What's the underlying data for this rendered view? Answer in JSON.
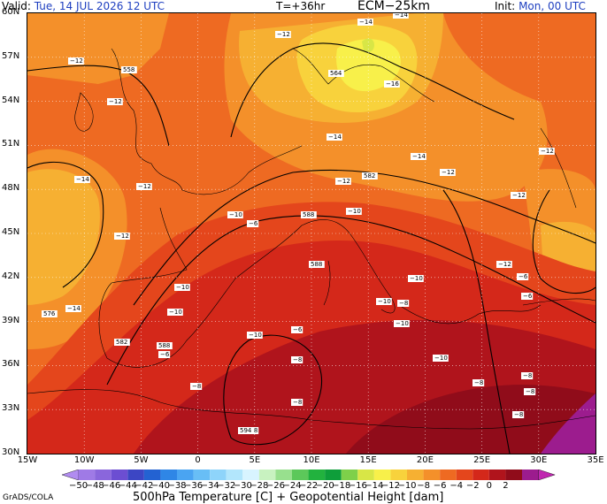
{
  "header": {
    "valid_prefix": "Valid:",
    "valid_value": "Tue, 14 JUL 2026   12 UTC",
    "forecast_step": "T=+36hr",
    "model": "ECM−25km",
    "init_prefix": "Init:",
    "init_value": "Mon, 00 UTC"
  },
  "axes": {
    "lat_labels": [
      "60N",
      "57N",
      "54N",
      "51N",
      "48N",
      "45N",
      "42N",
      "39N",
      "36N",
      "33N",
      "30N"
    ],
    "lon_labels": [
      "15W",
      "10W",
      "5W",
      "0",
      "5E",
      "10E",
      "15E",
      "20E",
      "25E",
      "30E",
      "35E"
    ]
  },
  "colorbar": {
    "labels": [
      "−50",
      "−48",
      "−46",
      "−44",
      "−42",
      "−40",
      "−38",
      "−36",
      "−34",
      "−32",
      "−30",
      "−28",
      "−26",
      "−24",
      "−22",
      "−20",
      "−18",
      "−16",
      "−14",
      "−12",
      "−10",
      "−8",
      "−6",
      "−4",
      "−2",
      "0",
      "2"
    ],
    "colors": [
      "#b18cf0",
      "#9f7ae6",
      "#8a66dc",
      "#6c4ed2",
      "#3c46c4",
      "#2362d2",
      "#2f86e6",
      "#4aa4f2",
      "#68bef6",
      "#8ed4fa",
      "#b2e6fc",
      "#d8f4ff",
      "#c8f2c0",
      "#98e08e",
      "#5cc85a",
      "#22b23e",
      "#0e9e3a",
      "#7ed04a",
      "#d8e646",
      "#f8f04a",
      "#f8d23c",
      "#f6b032",
      "#f4902a",
      "#ee6a22",
      "#e4461c",
      "#d4281a",
      "#b0141c",
      "#900c1a",
      "#9c1c8e",
      "#c028b0"
    ]
  },
  "footer": {
    "title": "500hPa Temperature [C] + Geopotential Height [dam]",
    "credit": "GrADS/COLA"
  },
  "map_labels": [
    {
      "text": "−14"
    },
    {
      "text": "−14"
    },
    {
      "text": "−12"
    },
    {
      "text": "−12"
    },
    {
      "text": "−12"
    },
    {
      "text": "558"
    },
    {
      "text": "564"
    },
    {
      "text": "−16"
    },
    {
      "text": "−12"
    },
    {
      "text": "−14"
    },
    {
      "text": "−14"
    },
    {
      "text": "−12"
    },
    {
      "text": "−14"
    },
    {
      "text": "−12"
    },
    {
      "text": "582"
    },
    {
      "text": "−12"
    },
    {
      "text": "−12"
    },
    {
      "text": "−10"
    },
    {
      "text": "−12"
    },
    {
      "text": "−10"
    },
    {
      "text": "588"
    },
    {
      "text": "−12"
    },
    {
      "text": "−10"
    },
    {
      "text": "−10"
    },
    {
      "text": "588"
    },
    {
      "text": "−10"
    },
    {
      "text": "576"
    },
    {
      "text": "−14"
    },
    {
      "text": "−10"
    },
    {
      "text": "−10"
    },
    {
      "text": "−10"
    },
    {
      "text": "582"
    },
    {
      "text": "−8"
    },
    {
      "text": "588"
    },
    {
      "text": "−10"
    },
    {
      "text": "−8"
    },
    {
      "text": "−8"
    },
    {
      "text": "−8"
    },
    {
      "text": "−8"
    },
    {
      "text": "−8"
    },
    {
      "text": "−8"
    },
    {
      "text": "−8"
    },
    {
      "text": "−8"
    },
    {
      "text": "−6"
    },
    {
      "text": "−6"
    },
    {
      "text": "−6"
    },
    {
      "text": "−6"
    },
    {
      "text": "−6"
    },
    {
      "text": "594"
    }
  ]
}
